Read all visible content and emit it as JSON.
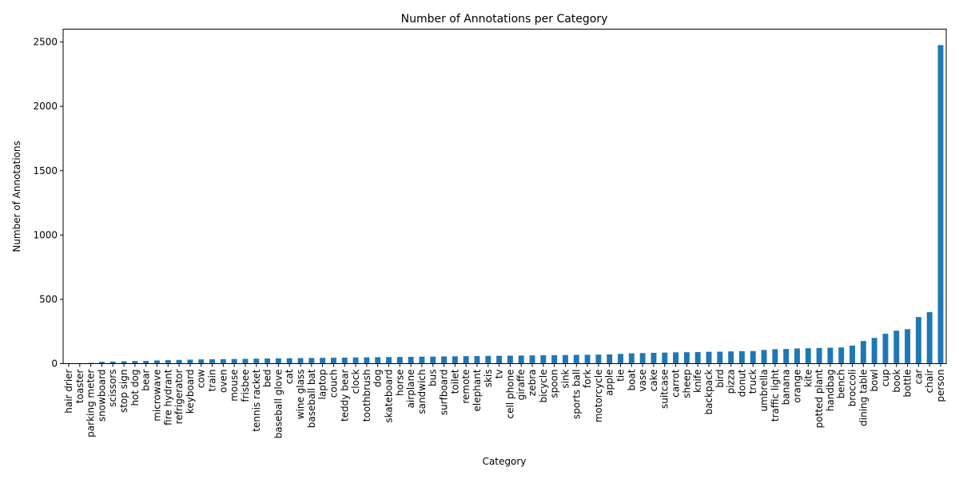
{
  "chart_data": {
    "type": "bar",
    "title": "Number of Annotations per Category",
    "xlabel": "Category",
    "ylabel": "Number of Annotations",
    "ylim": [
      0,
      2600
    ],
    "yticks": [
      0,
      500,
      1000,
      1500,
      2000,
      2500
    ],
    "grid": false,
    "bar_color": "#1f77b4",
    "categories": [
      "hair drier",
      "toaster",
      "parking meter",
      "snowboard",
      "scissors",
      "stop sign",
      "hot dog",
      "bear",
      "microwave",
      "fire hydrant",
      "refrigerator",
      "keyboard",
      "cow",
      "train",
      "oven",
      "mouse",
      "frisbee",
      "tennis racket",
      "bed",
      "baseball glove",
      "cat",
      "wine glass",
      "baseball bat",
      "laptop",
      "couch",
      "teddy bear",
      "clock",
      "toothbrush",
      "dog",
      "skateboard",
      "horse",
      "airplane",
      "sandwich",
      "bus",
      "surfboard",
      "toilet",
      "remote",
      "elephant",
      "skis",
      "tv",
      "cell phone",
      "giraffe",
      "zebra",
      "bicycle",
      "spoon",
      "sink",
      "sports ball",
      "fork",
      "motorcycle",
      "apple",
      "tie",
      "boat",
      "vase",
      "cake",
      "suitcase",
      "carrot",
      "sheep",
      "knife",
      "backpack",
      "bird",
      "pizza",
      "donut",
      "truck",
      "umbrella",
      "traffic light",
      "banana",
      "orange",
      "kite",
      "potted plant",
      "handbag",
      "bench",
      "broccoli",
      "dining table",
      "bowl",
      "cup",
      "book",
      "bottle",
      "car",
      "chair",
      "person"
    ],
    "values": [
      2,
      4,
      6,
      14,
      16,
      18,
      20,
      21,
      25,
      27,
      29,
      31,
      33,
      34,
      35,
      36,
      37,
      39,
      40,
      41,
      42,
      43,
      44,
      45,
      46,
      47,
      48,
      49,
      50,
      51,
      52,
      53,
      54,
      55,
      56,
      57,
      58,
      59,
      60,
      61,
      62,
      63,
      64,
      65,
      66,
      67,
      68,
      69,
      70,
      72,
      76,
      80,
      82,
      84,
      86,
      88,
      89,
      90,
      92,
      93,
      95,
      97,
      98,
      106,
      112,
      114,
      118,
      120,
      122,
      124,
      126,
      140,
      176,
      200,
      232,
      256,
      268,
      362,
      400,
      2476
    ]
  }
}
